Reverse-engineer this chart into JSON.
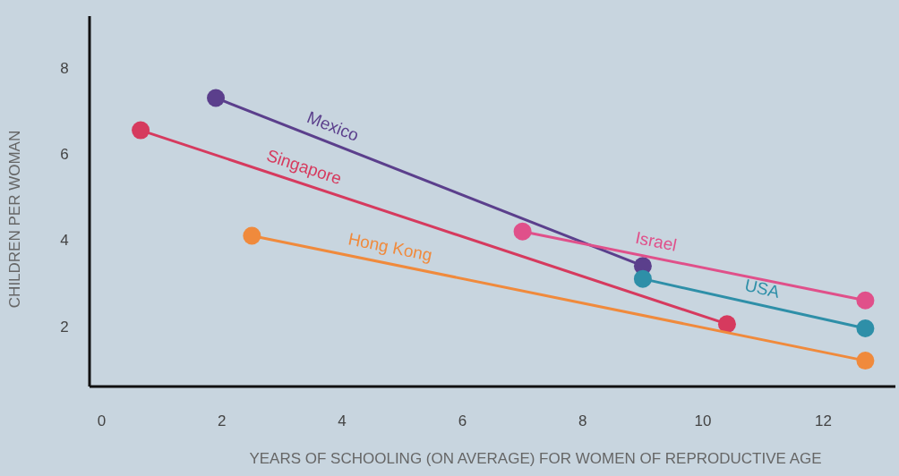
{
  "chart_data": {
    "type": "line",
    "xlabel": "YEARS OF SCHOOLING (ON AVERAGE) FOR WOMEN OF REPRODUCTIVE AGE",
    "ylabel": "CHILDREN PER WOMAN",
    "xlim": [
      -0.2,
      13.2
    ],
    "ylim": [
      0.6,
      9.2
    ],
    "xticks": [
      0,
      2,
      4,
      6,
      8,
      10,
      12
    ],
    "yticks": [
      2,
      4,
      6,
      8
    ],
    "grid": false,
    "marker": "circle",
    "line_style": "solid",
    "series": [
      {
        "name": "Mexico",
        "color": "#5b3f8c",
        "x": [
          1.9,
          9
        ],
        "values": [
          7.3,
          3.4
        ]
      },
      {
        "name": "Singapore",
        "color": "#d63a5e",
        "x": [
          0.65,
          10.4
        ],
        "values": [
          6.55,
          2.05
        ]
      },
      {
        "name": "Hong Kong",
        "color": "#f08a3c",
        "x": [
          2.5,
          12.7
        ],
        "values": [
          4.1,
          1.2
        ]
      },
      {
        "name": "Israel",
        "color": "#e0508a",
        "x": [
          7,
          12.7
        ],
        "values": [
          4.2,
          2.6
        ]
      },
      {
        "name": "USA",
        "color": "#2e8fa8",
        "x": [
          9,
          12.7
        ],
        "values": [
          3.1,
          1.95
        ]
      }
    ]
  }
}
